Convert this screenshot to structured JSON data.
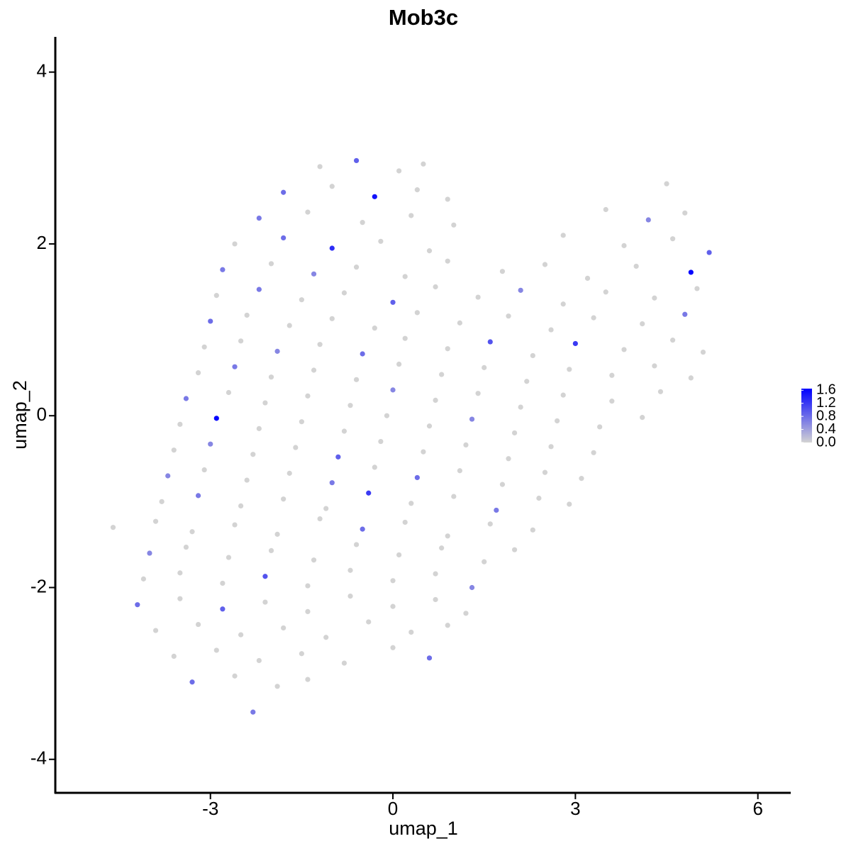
{
  "chart_data": {
    "type": "scatter",
    "title": "Mob3c",
    "xlabel": "umap_1",
    "ylabel": "umap_2",
    "xlim": [
      -5.55,
      6.54
    ],
    "ylim": [
      -4.39,
      4.41
    ],
    "xticks": [
      -3,
      0,
      3,
      6
    ],
    "yticks": [
      -4,
      -2,
      0,
      2,
      4
    ],
    "colorbar": {
      "low": "#d3d3d3",
      "high": "#0000ff",
      "lim": [
        0,
        1.65
      ],
      "ticks": [
        {
          "value": 0,
          "label": "0.0"
        },
        0.4,
        0.8,
        1.2,
        1.6
      ]
    },
    "x": [
      -1.2,
      -0.6,
      0.1,
      0.5,
      -1.8,
      -1.0,
      -0.3,
      0.4,
      0.9,
      4.5,
      -2.2,
      -1.4,
      -0.5,
      0.3,
      1.0,
      3.5,
      4.2,
      4.8,
      -2.6,
      -1.8,
      -1.0,
      -0.2,
      0.6,
      2.8,
      3.8,
      4.6,
      5.2,
      -2.8,
      -2.0,
      -1.3,
      -0.6,
      0.2,
      0.9,
      1.8,
      2.5,
      3.2,
      4.0,
      4.9,
      -2.9,
      -2.2,
      -1.5,
      -0.8,
      0.0,
      0.7,
      1.4,
      2.1,
      2.8,
      3.5,
      4.3,
      5.0,
      -3.0,
      -2.4,
      -1.7,
      -1.0,
      -0.3,
      0.4,
      1.1,
      1.9,
      2.6,
      3.3,
      4.1,
      4.8,
      -3.1,
      -2.5,
      -1.9,
      -1.2,
      -0.5,
      0.2,
      0.9,
      1.6,
      2.3,
      3.0,
      3.8,
      4.6,
      5.1,
      -3.2,
      -2.6,
      -2.0,
      -1.3,
      -0.6,
      0.1,
      0.8,
      1.5,
      2.2,
      2.9,
      3.6,
      4.3,
      4.9,
      -3.4,
      -2.7,
      -2.1,
      -1.4,
      -0.7,
      0.0,
      0.7,
      1.4,
      2.1,
      2.8,
      3.6,
      4.4,
      -3.5,
      -2.9,
      -2.2,
      -1.5,
      -0.8,
      -0.1,
      0.6,
      1.3,
      2.0,
      2.7,
      3.4,
      4.1,
      -3.6,
      -3.0,
      -2.3,
      -1.6,
      -0.9,
      -0.2,
      0.5,
      1.2,
      1.9,
      2.6,
      3.3,
      -3.7,
      -3.1,
      -2.4,
      -1.7,
      -1.0,
      -0.3,
      0.4,
      1.1,
      1.8,
      2.5,
      3.1,
      -3.8,
      -3.2,
      -2.5,
      -1.8,
      -1.1,
      -0.4,
      0.3,
      1.0,
      1.7,
      2.4,
      2.9,
      -4.6,
      -3.9,
      -3.3,
      -2.6,
      -1.9,
      -1.2,
      -0.5,
      0.2,
      0.9,
      1.6,
      2.3,
      -4.0,
      -3.4,
      -2.7,
      -2.0,
      -1.3,
      -0.6,
      0.1,
      0.8,
      1.5,
      2.0,
      -4.1,
      -3.5,
      -2.8,
      -2.1,
      -1.4,
      -0.7,
      0.0,
      0.7,
      1.3,
      -4.2,
      -3.5,
      -2.8,
      -2.1,
      -1.4,
      -0.7,
      0.0,
      0.7,
      1.2,
      -3.9,
      -3.2,
      -2.5,
      -1.8,
      -1.1,
      -0.4,
      0.3,
      0.9,
      -3.6,
      -2.9,
      -2.2,
      -1.5,
      -0.8,
      0.0,
      0.6,
      -3.3,
      -2.6,
      -1.9,
      -1.4,
      -2.3
    ],
    "values": [
      2.9,
      2.97,
      2.85,
      2.93,
      2.6,
      2.67,
      2.55,
      2.63,
      2.52,
      2.7,
      2.3,
      2.37,
      2.25,
      2.33,
      2.22,
      2.4,
      2.28,
      2.36,
      2.0,
      2.07,
      1.95,
      2.03,
      1.92,
      2.1,
      1.98,
      2.06,
      1.9,
      1.7,
      1.77,
      1.65,
      1.73,
      1.62,
      1.8,
      1.68,
      1.76,
      1.6,
      1.74,
      1.67,
      1.4,
      1.47,
      1.35,
      1.43,
      1.32,
      1.5,
      1.38,
      1.46,
      1.3,
      1.44,
      1.37,
      1.48,
      1.1,
      1.17,
      1.05,
      1.13,
      1.02,
      1.2,
      1.08,
      1.16,
      1.0,
      1.14,
      1.07,
      1.18,
      0.8,
      0.87,
      0.75,
      0.83,
      0.72,
      0.9,
      0.78,
      0.86,
      0.7,
      0.84,
      0.77,
      0.88,
      0.74,
      0.5,
      0.57,
      0.45,
      0.53,
      0.42,
      0.6,
      0.48,
      0.56,
      0.4,
      0.54,
      0.47,
      0.58,
      0.44,
      0.2,
      0.27,
      0.15,
      0.23,
      0.12,
      0.3,
      0.18,
      0.26,
      0.1,
      0.24,
      0.17,
      0.28,
      -0.1,
      -0.03,
      -0.15,
      -0.07,
      -0.18,
      0.0,
      -0.12,
      -0.04,
      -0.2,
      -0.06,
      -0.13,
      -0.02,
      -0.4,
      -0.33,
      -0.45,
      -0.37,
      -0.48,
      -0.3,
      -0.42,
      -0.34,
      -0.5,
      -0.36,
      -0.43,
      -0.7,
      -0.63,
      -0.75,
      -0.67,
      -0.78,
      -0.6,
      -0.72,
      -0.64,
      -0.8,
      -0.66,
      -0.73,
      -1.0,
      -0.93,
      -1.05,
      -0.97,
      -1.08,
      -0.9,
      -1.02,
      -0.94,
      -1.1,
      -0.96,
      -1.03,
      -1.3,
      -1.23,
      -1.35,
      -1.27,
      -1.38,
      -1.2,
      -1.32,
      -1.24,
      -1.4,
      -1.26,
      -1.33,
      -1.6,
      -1.53,
      -1.65,
      -1.57,
      -1.68,
      -1.5,
      -1.62,
      -1.54,
      -1.7,
      -1.56,
      -1.9,
      -1.83,
      -1.95,
      -1.87,
      -1.98,
      -1.8,
      -1.92,
      -1.84,
      -2.0,
      -2.2,
      -2.13,
      -2.25,
      -2.17,
      -2.28,
      -2.1,
      -2.22,
      -2.14,
      -2.3,
      -2.5,
      -2.43,
      -2.55,
      -2.47,
      -2.58,
      -2.4,
      -2.52,
      -2.44,
      -2.8,
      -2.73,
      -2.85,
      -2.77,
      -2.88,
      -2.7,
      -2.82,
      -3.1,
      -3.03,
      -3.15,
      -3.07,
      -3.45
    ],
    "color_values": [
      0,
      0.9,
      0,
      0,
      0.8,
      0,
      1.5,
      0,
      0,
      0,
      0.7,
      0,
      0,
      0,
      0,
      0,
      0.6,
      0,
      0,
      0.8,
      1.3,
      0,
      0,
      0,
      0,
      0,
      0.9,
      0.7,
      0,
      0.6,
      0,
      0,
      0,
      0,
      0,
      0,
      0,
      1.6,
      0,
      0.7,
      0,
      0,
      0.9,
      0,
      0,
      0.6,
      0,
      0,
      0,
      0,
      0.8,
      0,
      0,
      0,
      0,
      0,
      0,
      0,
      0,
      0,
      0,
      0.7,
      0,
      0,
      0.6,
      0,
      0.8,
      0,
      0,
      1.0,
      0,
      1.2,
      0,
      0,
      0,
      0,
      0.7,
      0,
      0,
      0,
      0,
      0,
      0,
      0,
      0,
      0,
      0,
      0,
      0.7,
      0,
      0,
      0,
      0,
      0.6,
      0,
      0,
      0,
      0,
      0,
      0,
      0,
      1.6,
      0,
      0,
      0,
      0,
      0,
      0.6,
      0,
      0,
      0,
      0,
      0,
      0.6,
      0,
      0,
      0.9,
      0,
      0,
      0,
      0,
      0,
      0,
      0.6,
      0,
      0,
      0,
      0.7,
      0,
      0.8,
      0,
      0,
      0,
      0,
      0,
      0.7,
      0,
      0,
      0,
      1.2,
      0,
      0,
      0.7,
      0,
      0,
      0,
      0,
      0,
      0,
      0,
      0,
      0.8,
      0,
      0,
      0,
      0,
      0.6,
      0,
      0,
      0,
      0,
      0,
      0,
      0,
      0,
      0,
      0,
      0,
      0,
      1.0,
      0,
      0,
      0,
      0,
      0.6,
      0.8,
      0,
      0.9,
      0,
      0,
      0,
      0,
      0,
      0,
      0,
      0,
      0,
      0,
      0,
      0,
      0,
      0,
      0,
      0,
      0,
      0,
      0,
      0,
      0.8,
      0.8,
      0,
      0,
      0,
      0.7
    ]
  }
}
